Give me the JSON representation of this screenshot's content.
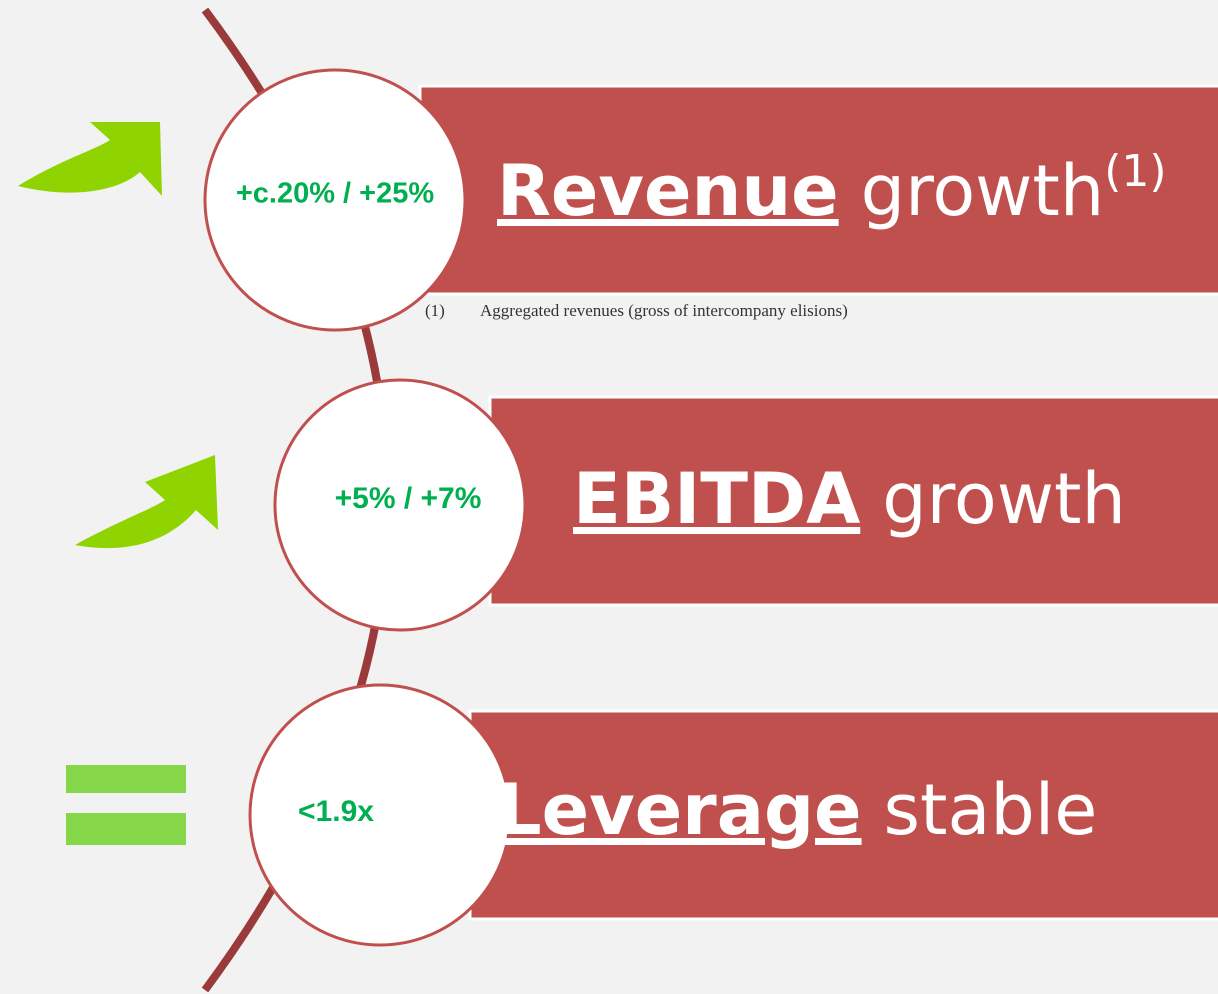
{
  "items": [
    {
      "value": "+c.20% / +25%",
      "bold": "Revenue",
      "rest": "growth",
      "superscript": "(1)"
    },
    {
      "value": "+5% / +7%",
      "bold": "EBITDA",
      "rest": "growth"
    },
    {
      "value": "<1.9x",
      "bold": "Leverage",
      "rest": "stable"
    }
  ],
  "footnote": {
    "marker": "(1)",
    "text": "Aggregated revenues (gross of intercompany elisions)"
  }
}
